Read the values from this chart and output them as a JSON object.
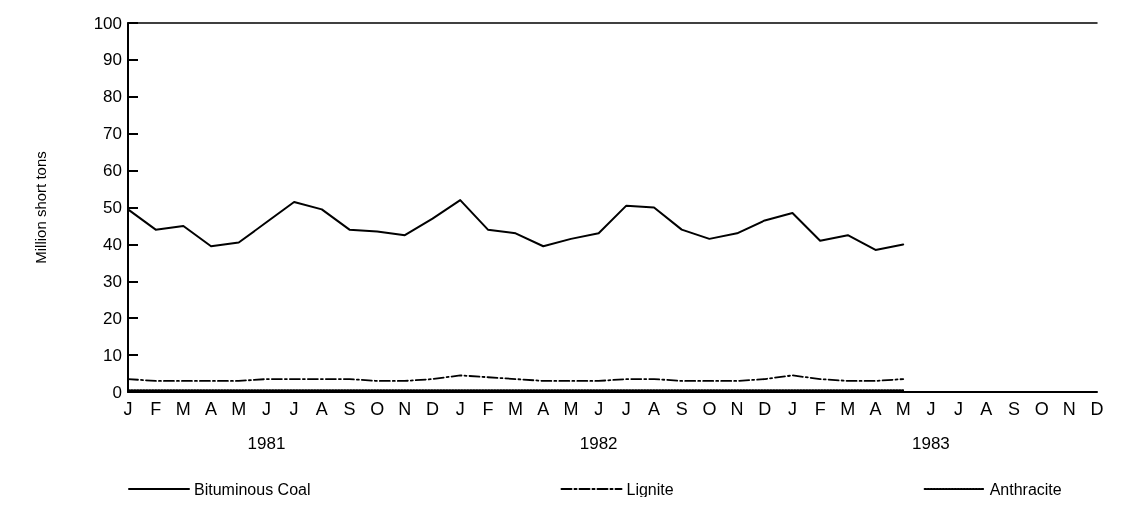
{
  "chart_data": {
    "type": "line",
    "ylabel": "Million short tons",
    "categories": [
      "J",
      "F",
      "M",
      "A",
      "M",
      "J",
      "J",
      "A",
      "S",
      "O",
      "N",
      "D",
      "J",
      "F",
      "M",
      "A",
      "M",
      "J",
      "J",
      "A",
      "S",
      "O",
      "N",
      "D",
      "J",
      "F",
      "M",
      "A",
      "M",
      "J",
      "J",
      "A",
      "S",
      "O",
      "N",
      "D"
    ],
    "annotations": [
      "1981",
      "1982",
      "1983"
    ],
    "series": [
      {
        "name": "Bituminous Coal",
        "color": "#000000",
        "line_style": "solid",
        "values": [
          49.5,
          44,
          45,
          39.5,
          40.5,
          46,
          51.5,
          49.5,
          44,
          43.5,
          42.5,
          47,
          52,
          44,
          43,
          39.5,
          41.5,
          43,
          50.5,
          50,
          44,
          41.5,
          43,
          46.5,
          48.5,
          41,
          42.5,
          38.5,
          40,
          null,
          null,
          null,
          null,
          null,
          null,
          null
        ]
      },
      {
        "name": "Lignite",
        "color": "#000000",
        "line_style": "dashdot",
        "values": [
          3.5,
          3,
          3,
          3,
          3,
          3.5,
          3.5,
          3.5,
          3.5,
          3,
          3,
          3.5,
          4.5,
          4,
          3.5,
          3,
          3,
          3,
          3.5,
          3.5,
          3,
          3,
          3,
          3.5,
          4.5,
          3.5,
          3,
          3,
          3.5,
          null,
          null,
          null,
          null,
          null,
          null,
          null
        ]
      },
      {
        "name": "Anthracite",
        "color": "#000000",
        "line_style": "dotted",
        "values": [
          0.5,
          0.5,
          0.5,
          0.5,
          0.5,
          0.5,
          0.5,
          0.5,
          0.5,
          0.5,
          0.5,
          0.5,
          0.5,
          0.5,
          0.5,
          0.5,
          0.5,
          0.5,
          0.5,
          0.5,
          0.5,
          0.5,
          0.5,
          0.5,
          0.5,
          0.5,
          0.5,
          0.5,
          0.5,
          null,
          null,
          null,
          null,
          null,
          null,
          null
        ]
      }
    ],
    "ylim": [
      0,
      100
    ],
    "yticks": [
      0,
      10,
      20,
      30,
      40,
      50,
      60,
      70,
      80,
      90,
      100
    ],
    "grid": false,
    "legend": "bottom",
    "marker": "none"
  }
}
